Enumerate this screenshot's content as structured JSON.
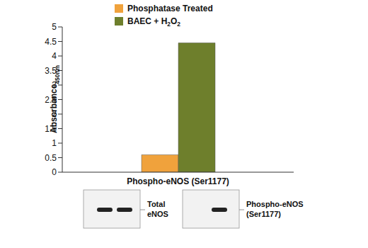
{
  "chart_data": {
    "type": "bar",
    "categories": [
      "Phospho-eNOS (Ser1177)"
    ],
    "series": [
      {
        "name": "Phosphatase Treated",
        "color": "#f0a23c",
        "values": [
          0.6
        ]
      },
      {
        "name": "BAEC + H2O2",
        "color": "#6e7f2c",
        "values": [
          4.45
        ]
      }
    ],
    "y_label": "Absorbance450nm",
    "ylim": [
      0,
      5
    ],
    "yticks": [
      0,
      0.5,
      1,
      1.5,
      2,
      2.5,
      3,
      3.5,
      4,
      4.5,
      5
    ],
    "grid": false,
    "legend": "top",
    "blots": [
      {
        "label": "Total eNOS",
        "bands": [
          true,
          true
        ]
      },
      {
        "label": "Phospho-eNOS (Ser1177)",
        "bands": [
          false,
          true
        ]
      }
    ]
  }
}
